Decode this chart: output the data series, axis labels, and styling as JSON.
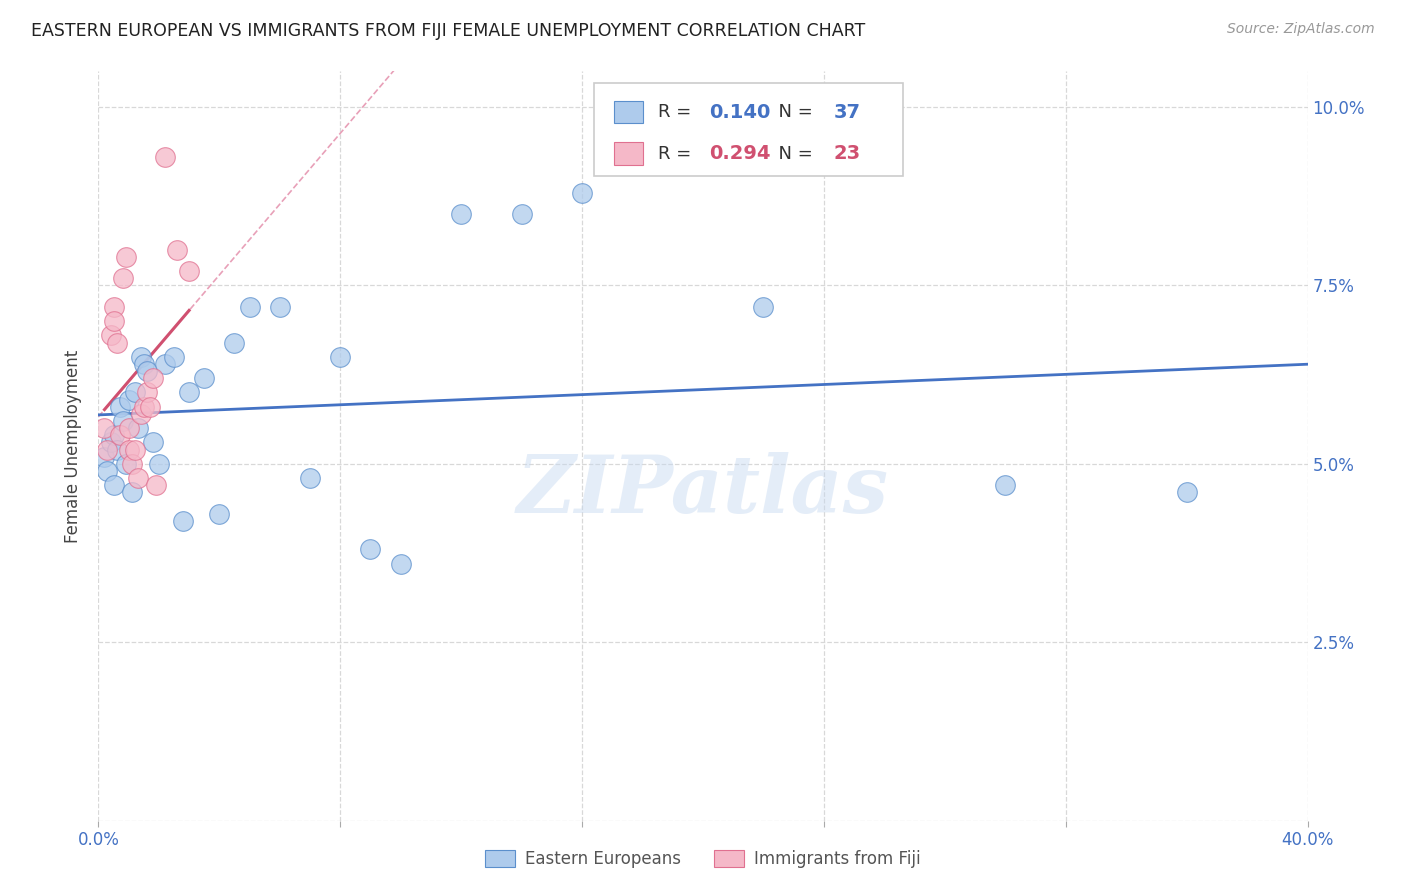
{
  "title": "EASTERN EUROPEAN VS IMMIGRANTS FROM FIJI FEMALE UNEMPLOYMENT CORRELATION CHART",
  "source": "Source: ZipAtlas.com",
  "ylabel": "Female Unemployment",
  "yticks": [
    0.0,
    0.025,
    0.05,
    0.075,
    0.1
  ],
  "ytick_labels": [
    "",
    "2.5%",
    "5.0%",
    "7.5%",
    "10.0%"
  ],
  "xticks": [
    0.0,
    0.08,
    0.16,
    0.24,
    0.32,
    0.4
  ],
  "xtick_labels": [
    "0.0%",
    "",
    "",
    "",
    "",
    "40.0%"
  ],
  "xlim": [
    0.0,
    0.4
  ],
  "ylim": [
    0.0,
    0.105
  ],
  "blue_R": 0.14,
  "blue_N": 37,
  "pink_R": 0.294,
  "pink_N": 23,
  "legend_blue_label": "Eastern Europeans",
  "legend_pink_label": "Immigrants from Fiji",
  "blue_color": "#aecbec",
  "pink_color": "#f5b8c8",
  "blue_edge_color": "#5b8fcc",
  "pink_edge_color": "#e07090",
  "blue_line_color": "#4472c4",
  "pink_line_color": "#d05070",
  "pink_dash_color": "#e8a0b8",
  "blue_scatter_x": [
    0.002,
    0.003,
    0.004,
    0.005,
    0.005,
    0.006,
    0.007,
    0.008,
    0.009,
    0.01,
    0.011,
    0.012,
    0.013,
    0.014,
    0.015,
    0.016,
    0.018,
    0.02,
    0.022,
    0.025,
    0.028,
    0.03,
    0.035,
    0.04,
    0.045,
    0.05,
    0.06,
    0.07,
    0.08,
    0.09,
    0.1,
    0.12,
    0.14,
    0.16,
    0.22,
    0.3,
    0.36
  ],
  "blue_scatter_y": [
    0.051,
    0.049,
    0.053,
    0.047,
    0.054,
    0.052,
    0.058,
    0.056,
    0.05,
    0.059,
    0.046,
    0.06,
    0.055,
    0.065,
    0.064,
    0.063,
    0.053,
    0.05,
    0.064,
    0.065,
    0.042,
    0.06,
    0.062,
    0.043,
    0.067,
    0.072,
    0.072,
    0.048,
    0.065,
    0.038,
    0.036,
    0.085,
    0.085,
    0.088,
    0.072,
    0.047,
    0.046
  ],
  "pink_scatter_x": [
    0.002,
    0.003,
    0.004,
    0.005,
    0.005,
    0.006,
    0.007,
    0.008,
    0.009,
    0.01,
    0.01,
    0.011,
    0.012,
    0.013,
    0.014,
    0.015,
    0.016,
    0.017,
    0.018,
    0.019,
    0.022,
    0.026,
    0.03
  ],
  "pink_scatter_y": [
    0.055,
    0.052,
    0.068,
    0.072,
    0.07,
    0.067,
    0.054,
    0.076,
    0.079,
    0.055,
    0.052,
    0.05,
    0.052,
    0.048,
    0.057,
    0.058,
    0.06,
    0.058,
    0.062,
    0.047,
    0.093,
    0.08,
    0.077
  ],
  "watermark": "ZIPatlas",
  "background_color": "#ffffff",
  "grid_color": "#d8d8d8"
}
